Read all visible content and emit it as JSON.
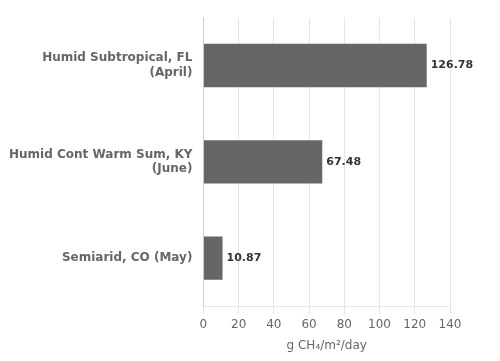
{
  "chart_data": {
    "type": "bar",
    "orientation": "horizontal",
    "categories": [
      "Semiarid, CO (May)",
      "Humid Cont Warm Sum, KY\n(June)",
      "Humid Subtropical, FL\n(April)"
    ],
    "values": [
      10.87,
      67.48,
      126.78
    ],
    "color": "#666666",
    "xlabel": "g CH₄/m²/day",
    "xlim": [
      0,
      140
    ],
    "xticks": [
      0,
      20,
      40,
      60,
      80,
      100,
      120,
      140
    ],
    "grid": true,
    "data_labels": true
  }
}
